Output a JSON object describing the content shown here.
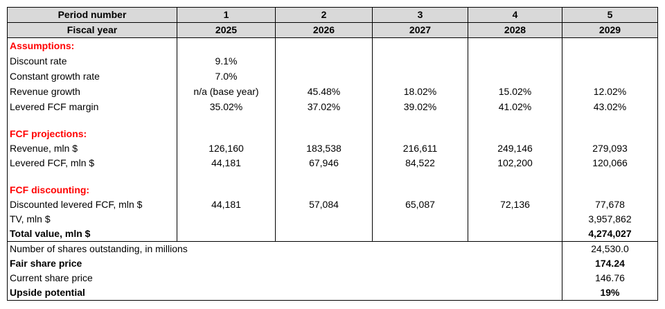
{
  "header": {
    "rows": [
      {
        "label": "Period number",
        "cells": [
          "1",
          "2",
          "3",
          "4",
          "5"
        ]
      },
      {
        "label": "Fiscal year",
        "cells": [
          "2025",
          "2026",
          "2027",
          "2028",
          "2029"
        ]
      }
    ]
  },
  "sections": [
    {
      "title": "Assumptions:",
      "rows": [
        {
          "label": "Discount rate",
          "cells": [
            "9.1%",
            null,
            null,
            null,
            null
          ]
        },
        {
          "label": "Constant growth rate",
          "cells": [
            "7.0%",
            null,
            null,
            null,
            null
          ]
        },
        {
          "label": "Revenue growth",
          "cells": [
            "n/a (base year)",
            "45.48%",
            "18.02%",
            "15.02%",
            "12.02%"
          ]
        },
        {
          "label": "Levered FCF margin",
          "cells": [
            "35.02%",
            "37.02%",
            "39.02%",
            "41.02%",
            "43.02%"
          ]
        }
      ]
    },
    {
      "title": "FCF projections:",
      "rows": [
        {
          "label": "Revenue, mln $",
          "cells": [
            "126,160",
            "183,538",
            "216,611",
            "249,146",
            "279,093"
          ]
        },
        {
          "label": "Levered FCF, mln $",
          "cells": [
            "44,181",
            "67,946",
            "84,522",
            "102,200",
            "120,066"
          ]
        }
      ]
    },
    {
      "title": "FCF discounting:",
      "rows": [
        {
          "label": "Discounted levered FCF, mln $",
          "cells": [
            "44,181",
            "57,084",
            "65,087",
            "72,136",
            "77,678"
          ]
        },
        {
          "label": "TV, mln $",
          "cells": [
            null,
            null,
            null,
            null,
            "3,957,862"
          ]
        }
      ]
    }
  ],
  "total": {
    "label": "Total value, mln $",
    "cells": [
      null,
      null,
      null,
      null,
      "4,274,027"
    ]
  },
  "summary": [
    {
      "label": "Number of shares outstanding, in millions",
      "value": "24,530.0"
    },
    {
      "label": "Fair share price",
      "value": "174.24"
    },
    {
      "label": "Current share price",
      "value": "146.76"
    },
    {
      "label": "Upside potential",
      "value": "19%"
    }
  ]
}
